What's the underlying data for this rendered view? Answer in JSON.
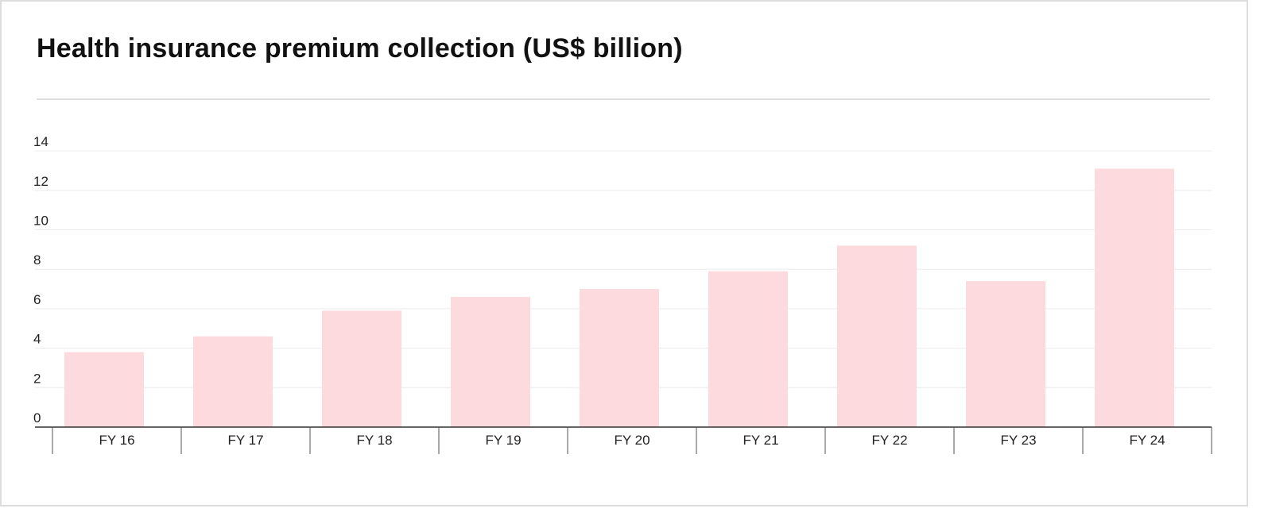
{
  "chart_data": {
    "type": "bar",
    "title": "Health insurance premium collection (US$ billion)",
    "categories": [
      "FY 16",
      "FY 17",
      "FY 18",
      "FY 19",
      "FY 20",
      "FY 21",
      "FY 22",
      "FY 23",
      "FY 24"
    ],
    "values": [
      3.8,
      4.6,
      5.9,
      6.6,
      7.0,
      7.9,
      9.2,
      7.4,
      13.1
    ],
    "yticks": [
      0,
      2,
      4,
      6,
      8,
      10,
      12,
      14
    ],
    "ylim": [
      0,
      14.4
    ],
    "xlabel": "",
    "ylabel": "",
    "grid": true,
    "bar_color": "#fddadd",
    "grid_color": "#ececec",
    "axis_color": "#333333"
  }
}
